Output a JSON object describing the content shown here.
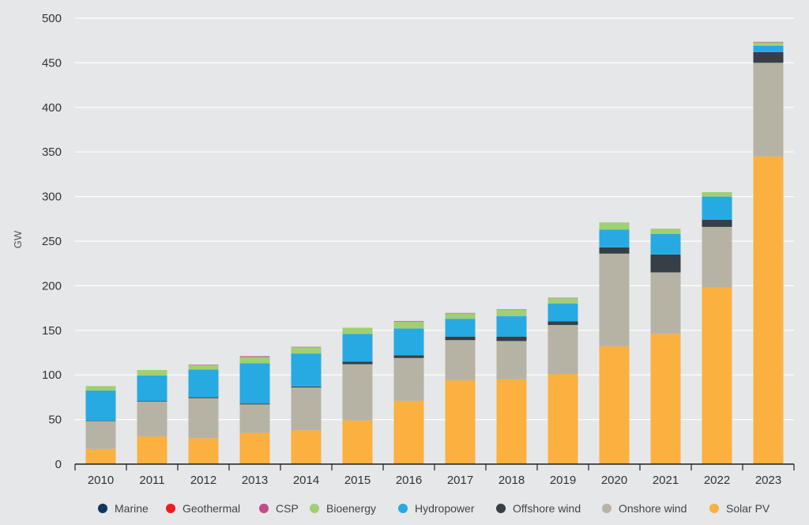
{
  "chart_data": {
    "type": "bar",
    "stacked": true,
    "title": "",
    "xlabel": "",
    "ylabel": "GW",
    "ylim": [
      0,
      500
    ],
    "yticks": [
      0,
      50,
      100,
      150,
      200,
      250,
      300,
      350,
      400,
      450,
      500
    ],
    "grid": true,
    "legend_position": "bottom",
    "categories": [
      "2010",
      "2011",
      "2012",
      "2013",
      "2014",
      "2015",
      "2016",
      "2017",
      "2018",
      "2019",
      "2020",
      "2021",
      "2022",
      "2023"
    ],
    "series": [
      {
        "name": "Solar PV",
        "color": "#fbb040",
        "values": [
          17,
          31,
          29,
          35,
          38,
          49,
          71,
          94,
          95,
          101,
          132,
          146,
          198,
          345
        ]
      },
      {
        "name": "Onshore wind",
        "color": "#b6b3a5",
        "values": [
          31,
          39,
          45,
          32,
          48,
          63,
          48,
          45,
          43,
          55,
          104,
          69,
          68,
          105
        ]
      },
      {
        "name": "Offshore wind",
        "color": "#353f45",
        "values": [
          0.5,
          0.5,
          1,
          1,
          1,
          3,
          3,
          4,
          5,
          4,
          7,
          20,
          8,
          12
        ]
      },
      {
        "name": "Hydropower",
        "color": "#27aae1",
        "values": [
          34,
          29,
          31,
          45,
          37,
          31,
          30,
          20,
          23,
          20,
          20,
          23,
          26,
          7
        ]
      },
      {
        "name": "Bioenergy",
        "color": "#9fd072",
        "values": [
          5,
          6,
          5,
          7,
          7,
          7,
          8,
          6,
          7,
          6,
          8,
          6,
          5,
          4
        ]
      },
      {
        "name": "CSP",
        "color": "#c4498d",
        "values": [
          0,
          0,
          0.5,
          1,
          0.5,
          0,
          0.5,
          0.5,
          0.5,
          0.5,
          0,
          0,
          0,
          0.5
        ]
      },
      {
        "name": "Geothermal",
        "color": "#ed1c24",
        "values": [
          0,
          0,
          0,
          0,
          0,
          0,
          0,
          0,
          0,
          0,
          0,
          0,
          0,
          0
        ]
      },
      {
        "name": "Marine",
        "color": "#10375c",
        "values": [
          0,
          0,
          0,
          0,
          0,
          0,
          0,
          0,
          0,
          0,
          0,
          0,
          0,
          0
        ]
      }
    ],
    "legend_order": [
      "Marine",
      "Geothermal",
      "CSP",
      "Bioenergy",
      "Hydropower",
      "Offshore wind",
      "Onshore wind",
      "Solar PV"
    ]
  }
}
